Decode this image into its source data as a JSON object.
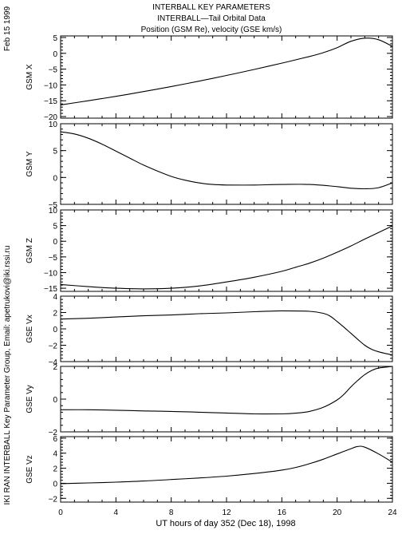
{
  "header": {
    "line1": "INTERBALL KEY PARAMETERS",
    "line2": "INTERBALL—Tail Orbital Data",
    "line3": "Position (GSM Re), velocity (GSE km/s)"
  },
  "side": {
    "date": "Feb 15 1999",
    "credit": "IKI RAN INTERBALL Key Parameter Group, Email: apetrukovi@iki.rssi.ru"
  },
  "xaxis": {
    "label": "UT hours of day 352 (Dec 18), 1998",
    "range": [
      0,
      24
    ],
    "ticks": [
      0,
      4,
      8,
      12,
      16,
      20,
      24
    ],
    "tick_labels": [
      "0",
      "4",
      "8",
      "12",
      "16",
      "20",
      "24"
    ]
  },
  "chart_data": [
    {
      "type": "line",
      "ylabel": "GSM X",
      "ylim": [
        -20.5,
        5.5
      ],
      "yticks": [
        5,
        0,
        -5,
        -10,
        -15,
        -20
      ],
      "ytick_labels": [
        "5",
        "0",
        "−5",
        "−10",
        "−15",
        "−20"
      ],
      "x": [
        0,
        2,
        4,
        6,
        8,
        10,
        12,
        14,
        16,
        18,
        19,
        20,
        21,
        22,
        23,
        24
      ],
      "y": [
        -16.3,
        -15.0,
        -13.6,
        -12.1,
        -10.5,
        -8.8,
        -7.0,
        -5.1,
        -3.1,
        -1.0,
        0.2,
        1.8,
        3.8,
        4.8,
        4.3,
        2.2
      ]
    },
    {
      "type": "line",
      "ylabel": "GSM Y",
      "ylim": [
        -5,
        10
      ],
      "yticks": [
        10,
        5,
        0,
        -5
      ],
      "ytick_labels": [
        "10",
        "5",
        "0",
        "−5"
      ],
      "x": [
        0,
        1,
        2,
        3,
        4,
        5,
        6,
        7,
        8,
        9,
        10,
        11,
        12,
        14,
        16,
        18,
        20,
        21,
        22,
        23,
        24
      ],
      "y": [
        8.5,
        8.1,
        7.3,
        6.2,
        4.9,
        3.6,
        2.3,
        1.2,
        0.2,
        -0.5,
        -1.0,
        -1.3,
        -1.4,
        -1.4,
        -1.3,
        -1.3,
        -1.7,
        -2.0,
        -2.1,
        -1.9,
        -1.0
      ]
    },
    {
      "type": "line",
      "ylabel": "GSM Z",
      "ylim": [
        -16,
        10
      ],
      "yticks": [
        10,
        5,
        0,
        -5,
        -10,
        -15
      ],
      "ytick_labels": [
        "10",
        "5",
        "0",
        "−5",
        "−10",
        "−15"
      ],
      "x": [
        0,
        2,
        4,
        6,
        8,
        10,
        12,
        14,
        16,
        17,
        18,
        19,
        20,
        21,
        22,
        23,
        24
      ],
      "y": [
        -13.8,
        -14.5,
        -15.0,
        -15.2,
        -15.0,
        -14.3,
        -13.0,
        -11.5,
        -9.6,
        -8.3,
        -7.0,
        -5.4,
        -3.5,
        -1.5,
        0.7,
        2.8,
        4.9
      ]
    },
    {
      "type": "line",
      "ylabel": "GSE Vx",
      "ylim": [
        -4,
        4
      ],
      "yticks": [
        4,
        2,
        0,
        -2,
        -4
      ],
      "ytick_labels": [
        "4",
        "2",
        "0",
        "−2",
        "−4"
      ],
      "x": [
        0,
        2,
        4,
        6,
        8,
        10,
        12,
        14,
        16,
        18,
        19,
        19.5,
        20,
        20.5,
        21,
        21.5,
        22,
        22.5,
        23,
        23.5,
        24
      ],
      "y": [
        1.2,
        1.3,
        1.45,
        1.6,
        1.7,
        1.85,
        1.95,
        2.1,
        2.2,
        2.15,
        1.9,
        1.55,
        0.9,
        0.2,
        -0.55,
        -1.3,
        -2.0,
        -2.5,
        -2.8,
        -3.0,
        -3.2
      ]
    },
    {
      "type": "line",
      "ylabel": "GSE Vy",
      "ylim": [
        -2,
        2
      ],
      "yticks": [
        2,
        0,
        -2
      ],
      "ytick_labels": [
        "2",
        "0",
        "−2"
      ],
      "x": [
        0,
        2,
        4,
        6,
        8,
        10,
        12,
        14,
        16,
        17,
        18,
        19,
        20,
        20.5,
        21,
        21.5,
        22,
        22.5,
        23,
        23.5,
        24
      ],
      "y": [
        -0.65,
        -0.65,
        -0.68,
        -0.72,
        -0.75,
        -0.8,
        -0.85,
        -0.9,
        -0.9,
        -0.86,
        -0.75,
        -0.5,
        -0.05,
        0.3,
        0.75,
        1.15,
        1.5,
        1.75,
        1.9,
        1.95,
        2.0
      ]
    },
    {
      "type": "line",
      "ylabel": "GSE Vz",
      "ylim": [
        -2.5,
        6.2
      ],
      "yticks": [
        6,
        4,
        2,
        0,
        -2
      ],
      "ytick_labels": [
        "6",
        "4",
        "2",
        "0",
        "−2"
      ],
      "x": [
        0,
        2,
        4,
        6,
        8,
        10,
        12,
        14,
        16,
        17,
        18,
        19,
        20,
        21,
        21.5,
        22,
        23,
        24
      ],
      "y": [
        -0.05,
        0.05,
        0.15,
        0.3,
        0.5,
        0.7,
        0.95,
        1.3,
        1.75,
        2.1,
        2.6,
        3.2,
        3.9,
        4.6,
        4.9,
        4.8,
        3.9,
        2.8
      ]
    }
  ]
}
